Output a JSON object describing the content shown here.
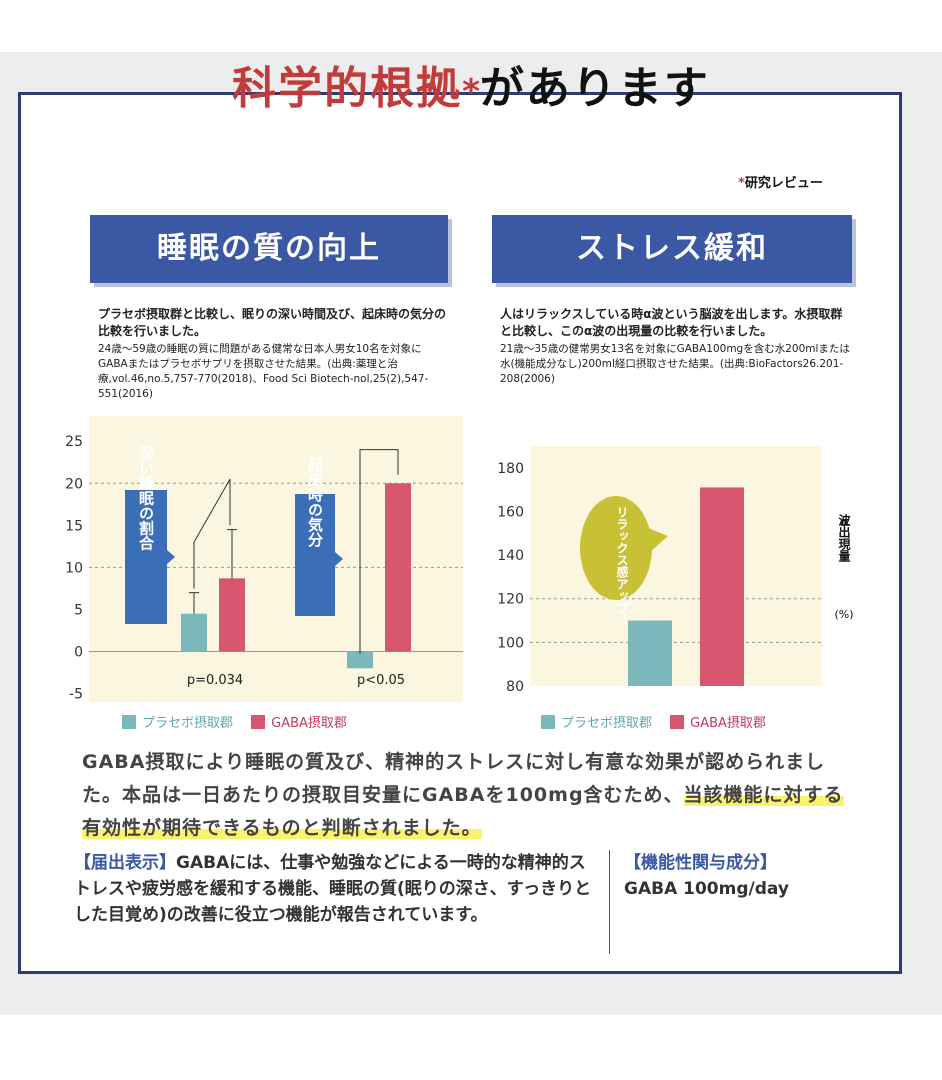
{
  "headline": {
    "red": "科学的根拠",
    "star": "*",
    "black": "があります",
    "review_star": "*",
    "review": "研究レビュー"
  },
  "colors": {
    "placebo": "#7bb8bb",
    "gaba": "#d6576f",
    "banner": "#3a58a3",
    "callout_blue": "#3a6fb8",
    "callout_olive": "#c9c135"
  },
  "left_panel": {
    "banner": "睡眠の質の向上",
    "desc": "プラセボ摂取群と比較し、眠りの深い時間及び、起床時の気分の比較を行いました。",
    "source": "24歳～59歳の睡眠の質に問題がある健常な日本人男女10名を対象にGABAまたはプラセボサプリを摂取させた結果。(出典:薬理と治療,vol.46,no.5,757-770(2018)、Food Sci Biotech-nol,25(2),547-551(2016)",
    "callout1": "深い睡眠の割合",
    "callout2": "起床時の気分",
    "p1": "p=0.034",
    "p2": "p<0.05",
    "legend_placebo": "プラセボ摂取郡",
    "legend_gaba": "GABA摂取郡"
  },
  "right_panel": {
    "banner": "ストレス緩和",
    "desc": "人はリラックスしている時α波という脳波を出します。水摂取群と比較し、このα波の出現量の比較を行いました。",
    "source": "21歳～35歳の健常男女13名を対象にGABA100mgを含む水200mlまたは水(機能成分なし)200ml経口摂取させた結果。(出典:BioFactors26.201-208(2006)",
    "callout": "リラックス感アップ！",
    "ylabel_alpha": "α",
    "ylabel": "波出現量",
    "ylabel_unit": "(%)",
    "legend_placebo": "プラセボ摂取郡",
    "legend_gaba": "GABA摂取郡"
  },
  "summary": {
    "text": "GABA摂取により睡眠の質及び、精神的ストレスに対し有意な効果が認められました。本品は一日あたりの摂取目安量にGABAを100mg含むため、",
    "highlight": "当該機能に対する有効性が期待できるものと判断されました。"
  },
  "notice": {
    "title": "【届出表示】",
    "text": "GABAには、仕事や勉強などによる一時的な精神的ストレスや疲労感を緩和する機能、睡眠の質(眠りの深さ、すっきりとした目覚め)の改善に役立つ機能が報告されています。"
  },
  "ingredient": {
    "title": "【機能性関与成分】",
    "text": "GABA 100mg/day"
  },
  "chart_data": [
    {
      "type": "bar",
      "categories": [
        "深い睡眠の割合",
        "起床時の気分"
      ],
      "series": [
        {
          "name": "プラセボ摂取郡",
          "values": [
            4.5,
            -2
          ],
          "error": [
            2.5,
            null
          ]
        },
        {
          "name": "GABA摂取郡",
          "values": [
            8.7,
            20
          ],
          "error": [
            5.8,
            null
          ]
        }
      ],
      "yticks": [
        25,
        20,
        15,
        10,
        5,
        0,
        -5
      ],
      "ylim": [
        -6,
        28
      ],
      "annotations": [
        "p=0.034",
        "p<0.05"
      ]
    },
    {
      "type": "bar",
      "categories": [
        "プラセボ摂取郡",
        "GABA摂取郡"
      ],
      "values": [
        110,
        171
      ],
      "yticks": [
        180,
        160,
        140,
        120,
        100,
        80
      ],
      "ylim": [
        80,
        190
      ],
      "ylabel": "α波出現量(%)"
    }
  ]
}
